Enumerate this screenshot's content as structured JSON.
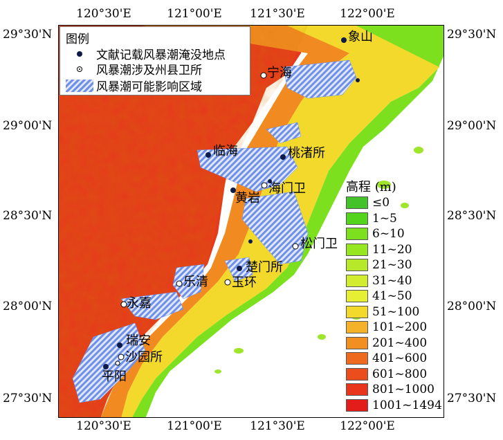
{
  "axes": {
    "top": [
      "120°30'E",
      "121°00'E",
      "121°30'E",
      "122°00'E"
    ],
    "bottom": [
      "120°30'E",
      "121°00'E",
      "121°30'E",
      "122°00'E"
    ],
    "left": [
      "29°30'N",
      "29°00'N",
      "28°30'N",
      "28°00'N",
      "27°30'N"
    ],
    "right": [
      "29°30'N",
      "29°00'N",
      "28°30'N",
      "28°00'N",
      "27°30'N"
    ]
  },
  "legend": {
    "title": "图例",
    "documented_sites": "文献记载风暴潮淹没地点",
    "counties": "风暴潮涉及州县卫所",
    "impact_area": "风暴潮可能影响区域"
  },
  "elevation_legend": {
    "title": "高程 (m)",
    "classes": [
      {
        "label": "≤0",
        "color": "#44c22a"
      },
      {
        "label": "1~5",
        "color": "#55d41e"
      },
      {
        "label": "6~10",
        "color": "#7de01e"
      },
      {
        "label": "11~20",
        "color": "#96e621"
      },
      {
        "label": "21~30",
        "color": "#b7e82a"
      },
      {
        "label": "31~40",
        "color": "#d2ec30"
      },
      {
        "label": "41~50",
        "color": "#e6ef34"
      },
      {
        "label": "51~100",
        "color": "#f3d92b"
      },
      {
        "label": "101~200",
        "color": "#f4b22a"
      },
      {
        "label": "201~400",
        "color": "#f28f23"
      },
      {
        "label": "401~600",
        "color": "#ee6a1f"
      },
      {
        "label": "601~800",
        "color": "#eb4d1d"
      },
      {
        "label": "801~1000",
        "color": "#e8351b"
      },
      {
        "label": "1001~1494",
        "color": "#e31d1a"
      }
    ]
  },
  "places": {
    "xiangshan": "象山",
    "ninghai": "宁海",
    "linhai": "临海",
    "taozhusuo": "桃渚所",
    "haimenwei": "海门卫",
    "huangyan": "黄岩",
    "songmenwei": "松门卫",
    "chumensuo": "楚门所",
    "yueqing": "乐清",
    "yuhuan": "玉环",
    "yongjia": "永嘉",
    "ruian": "瑞安",
    "shayuansuo": "沙园所",
    "pingyang": "平阳"
  }
}
